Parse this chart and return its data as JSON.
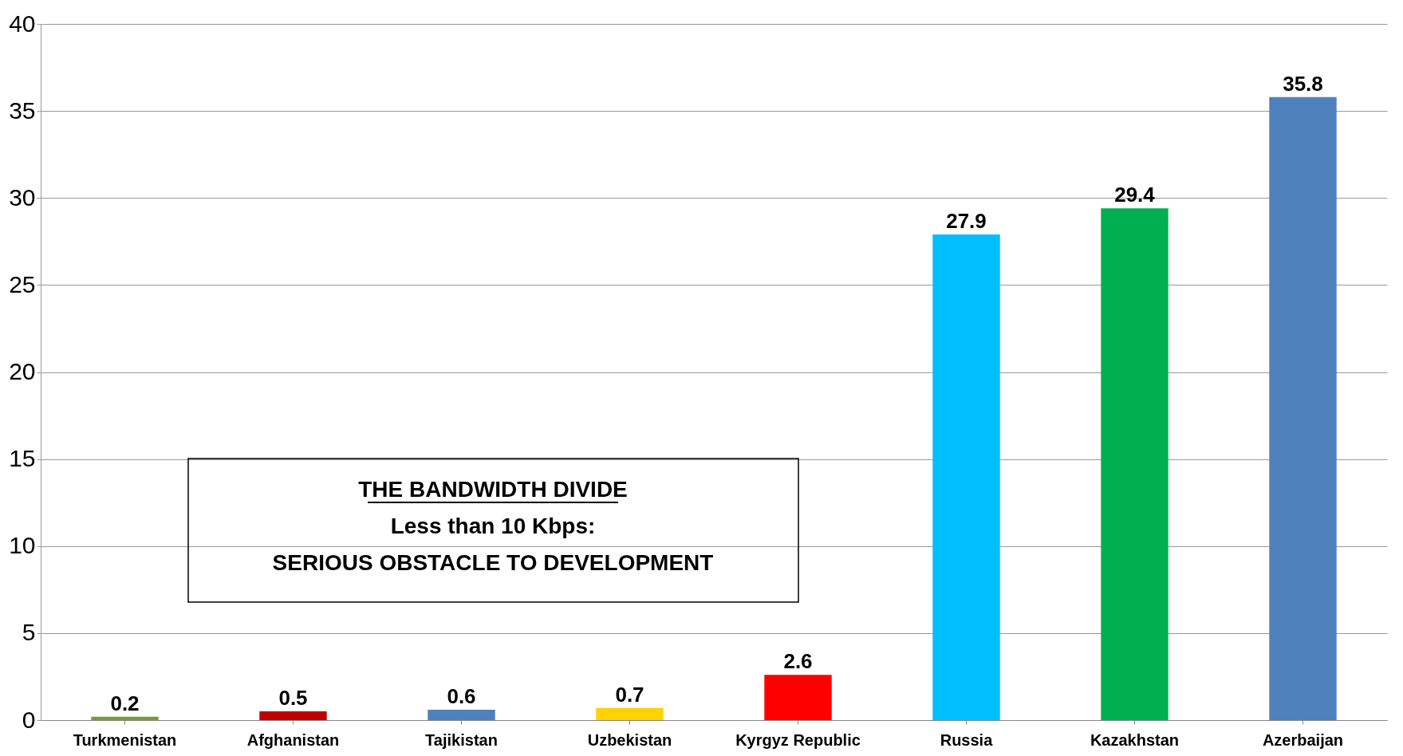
{
  "chart_data": {
    "type": "bar",
    "categories": [
      "Turkmenistan",
      "Afghanistan",
      "Tajikistan",
      "Uzbekistan",
      "Kyrgyz Republic",
      "Russia",
      "Kazakhstan",
      "Azerbaijan"
    ],
    "values": [
      0.2,
      0.5,
      0.6,
      0.7,
      2.6,
      27.9,
      29.4,
      35.8
    ],
    "colors": [
      "#7a9a3a",
      "#c00000",
      "#4f81bd",
      "#ffd200",
      "#ff0000",
      "#00bfff",
      "#00b050",
      "#4f81bd"
    ],
    "ylim": [
      0,
      40
    ],
    "yticks": [
      0,
      5,
      10,
      15,
      20,
      25,
      30,
      35,
      40
    ],
    "grid": "y",
    "data_labels": true,
    "annotations": [
      "THE BANDWIDTH DIVIDE",
      "Less than 10 Kbps:",
      "SERIOUS OBSTACLE TO DEVELOPMENT"
    ]
  }
}
